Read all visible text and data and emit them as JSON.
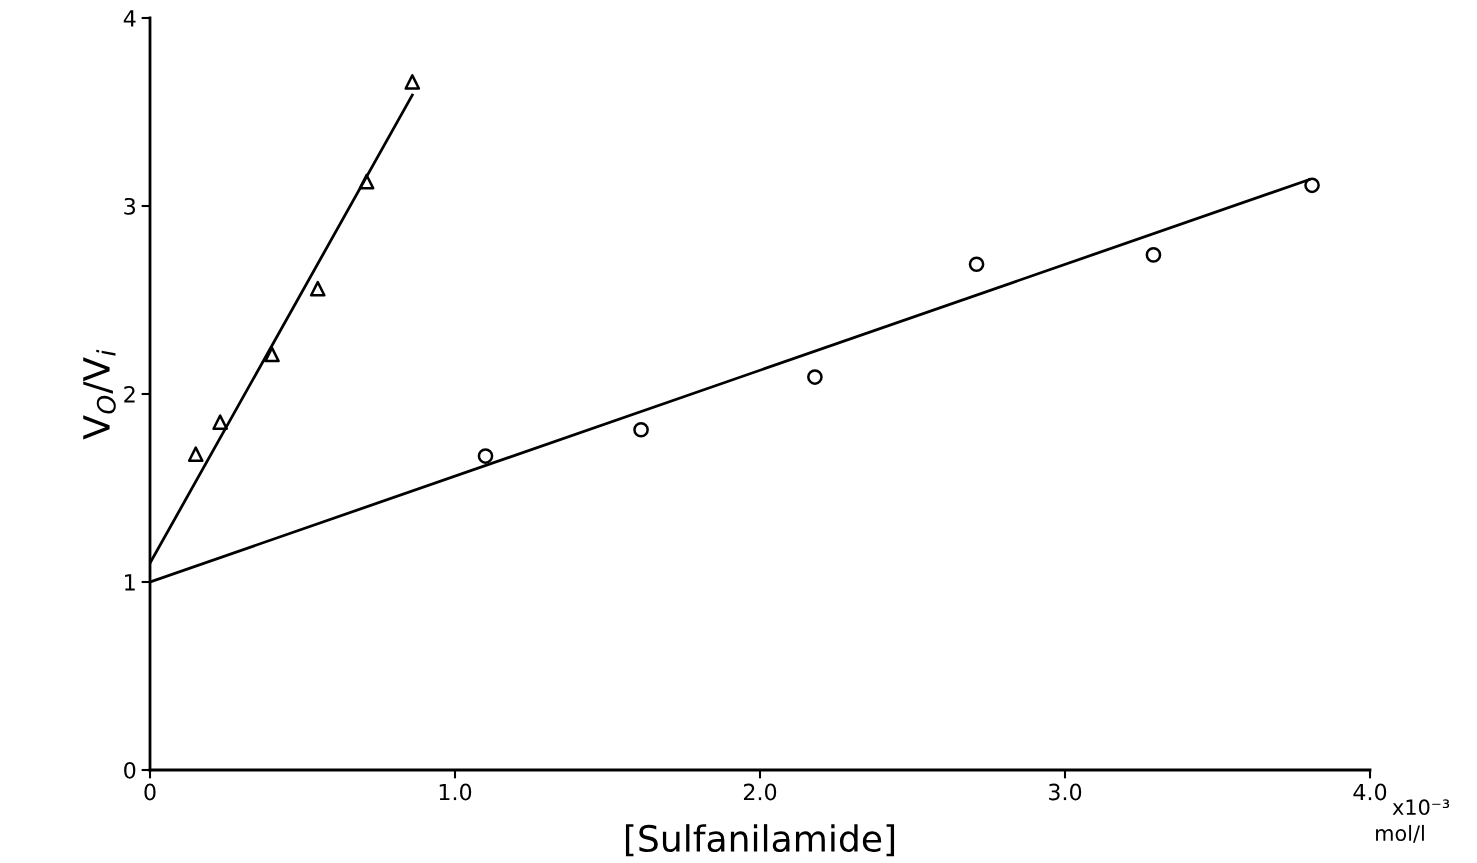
{
  "chart_data": {
    "type": "scatter",
    "xlabel": "[Sulfanilamide]",
    "ylabel": "V$_{O}$/V$_{i}$",
    "xlim": [
      0,
      4.0
    ],
    "ylim": [
      0,
      4
    ],
    "xticks": [
      0,
      {
        "value": 1.0,
        "label": "1.0"
      },
      {
        "value": 2.0,
        "label": "2.0"
      },
      {
        "value": 3.0,
        "label": "3.0"
      },
      {
        "value": 4.0,
        "label": "4.0"
      }
    ],
    "yticks": [
      0,
      1,
      2,
      3,
      4
    ],
    "annotations": [
      "x10⁻³",
      "mol/l"
    ],
    "grid": false,
    "legend": false,
    "series": [
      {
        "marker": "triangle",
        "color": "#000000",
        "x": [
          0.15,
          0.23,
          0.4,
          0.55,
          0.71,
          0.86
        ],
        "values": [
          1.68,
          1.85,
          2.21,
          2.56,
          3.13,
          3.66
        ]
      },
      {
        "marker": "circle",
        "color": "#000000",
        "x": [
          1.1,
          1.61,
          2.18,
          2.71,
          3.29,
          3.81
        ],
        "values": [
          1.67,
          1.81,
          2.09,
          2.69,
          2.74,
          3.11
        ]
      },
      {
        "type": "line",
        "marker": "none",
        "line_style": "solid",
        "color": "#000000",
        "x": [
          0,
          0.86
        ],
        "values": [
          1.1,
          3.59
        ]
      },
      {
        "type": "line",
        "marker": "none",
        "line_style": "solid",
        "color": "#000000",
        "x": [
          0,
          3.8
        ],
        "values": [
          1.0,
          3.14
        ]
      }
    ]
  }
}
